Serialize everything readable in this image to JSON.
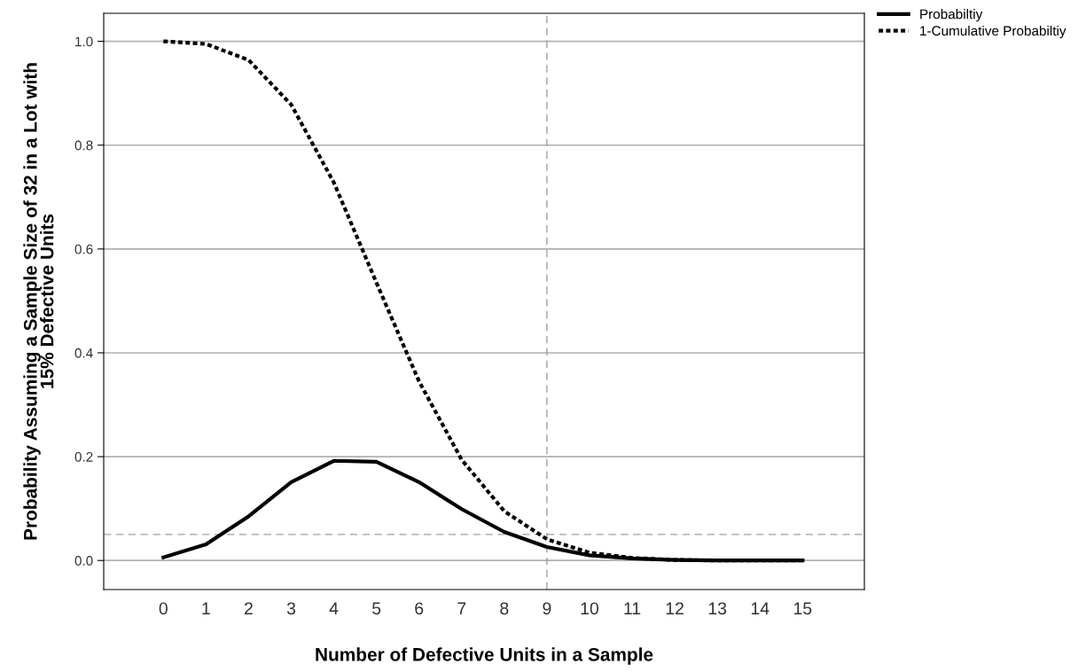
{
  "chart_data": {
    "type": "line",
    "xlabel": "Number of Defective Units in a Sample",
    "ylabel": "Probability Assuming a Sample Size of 32 in a Lot with\n15% Defective Units",
    "x": [
      0,
      1,
      2,
      3,
      4,
      5,
      6,
      7,
      8,
      9,
      10,
      11,
      12,
      13,
      14,
      15
    ],
    "series": [
      {
        "name": "Probabiltiy",
        "color": "#000000",
        "line_style": "solid",
        "values": [
          0.006,
          0.031,
          0.085,
          0.151,
          0.192,
          0.19,
          0.151,
          0.099,
          0.055,
          0.026,
          0.01,
          0.004,
          0.001,
          0.0,
          0.0,
          0.0
        ]
      },
      {
        "name": "1-Cumulative Probabiltiy",
        "color": "#000000",
        "line_style": "dotted",
        "values": [
          1.0,
          0.995,
          0.964,
          0.878,
          0.728,
          0.535,
          0.345,
          0.194,
          0.095,
          0.041,
          0.015,
          0.005,
          0.001,
          0.0,
          0.0,
          0.0
        ]
      }
    ],
    "xlim": [
      -1.4,
      16.45
    ],
    "xticks": [
      0,
      1,
      2,
      3,
      4,
      5,
      6,
      7,
      8,
      9,
      10,
      11,
      12,
      13,
      14,
      15
    ],
    "ylim": [
      -0.056,
      1.054
    ],
    "yticks": [
      {
        "value": 0,
        "label": "0.0"
      },
      {
        "value": 0.2,
        "label": "0.2"
      },
      {
        "value": 0.4,
        "label": "0.4"
      },
      {
        "value": 0.6,
        "label": "0.6"
      },
      {
        "value": 0.8,
        "label": "0.8"
      },
      {
        "value": 1,
        "label": "1.0"
      }
    ],
    "ref_lines": [
      {
        "axis": "y",
        "value": 0.05,
        "color": "#a0a0a0",
        "line_style": "dashed"
      },
      {
        "axis": "x",
        "value": 9,
        "color": "#a0a0a0",
        "line_style": "dashed"
      }
    ],
    "grid": "y",
    "legend": "top right"
  }
}
